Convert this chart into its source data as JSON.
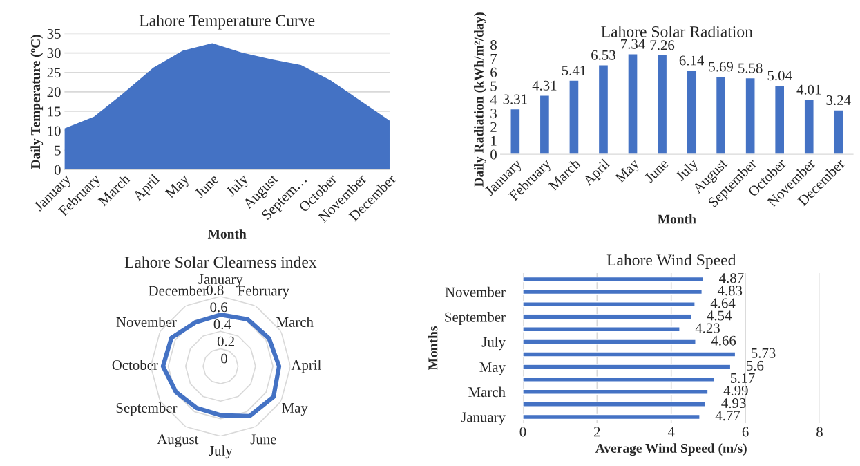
{
  "chart_data": [
    {
      "type": "area",
      "title": "Lahore Temperature Curve",
      "xlabel": "Month",
      "ylabel": "Daily Temperature (ºC)",
      "categories": [
        "January",
        "February",
        "March",
        "April",
        "May",
        "June",
        "July",
        "August",
        "Septem…",
        "October",
        "November",
        "December"
      ],
      "series": [
        {
          "color": "#4472c4",
          "values": [
            10.6,
            13.6,
            19.7,
            26.2,
            30.6,
            32.5,
            30.1,
            28.4,
            26.9,
            23.0,
            17.8,
            12.6
          ]
        }
      ],
      "ylim": [
        0,
        35
      ],
      "yticks": [
        0,
        5,
        10,
        15,
        20,
        25,
        30,
        35
      ],
      "grid": "y"
    },
    {
      "type": "bar",
      "title": "Lahore Solar Radiation",
      "xlabel": "Month",
      "ylabel": "Daily Radiation (kWh/m²/day)",
      "categories": [
        "January",
        "February",
        "March",
        "April",
        "May",
        "June",
        "July",
        "August",
        "September",
        "October",
        "November",
        "December"
      ],
      "series": [
        {
          "color": "#4472c4",
          "values": [
            3.31,
            4.31,
            5.41,
            6.53,
            7.34,
            7.26,
            6.14,
            5.69,
            5.58,
            5.04,
            4.01,
            3.24
          ]
        }
      ],
      "ylim": [
        0,
        8
      ],
      "yticks": [
        0,
        1,
        2,
        3,
        4,
        5,
        6,
        7,
        8
      ],
      "data_labels": true
    },
    {
      "type": "radar",
      "title": "Lahore Solar Clearness index",
      "categories": [
        "January",
        "February",
        "March",
        "April",
        "May",
        "June",
        "July",
        "August",
        "September",
        "October",
        "November",
        "December"
      ],
      "series": [
        {
          "color": "#4472c4",
          "values": [
            0.59,
            0.62,
            0.64,
            0.67,
            0.7,
            0.66,
            0.56,
            0.55,
            0.59,
            0.66,
            0.65,
            0.58
          ]
        }
      ],
      "ylim": [
        0,
        0.8
      ],
      "yticks": [
        0,
        0.2,
        0.4,
        0.6,
        0.8
      ],
      "grid": true
    },
    {
      "type": "bar",
      "orientation": "horizontal",
      "title": "Lahore Wind Speed",
      "xlabel": "Average Wind Speed (m/s)",
      "ylabel": "Months",
      "categories": [
        null,
        "November",
        null,
        "September",
        null,
        "July",
        null,
        "May",
        null,
        "March",
        null,
        "January"
      ],
      "series": [
        {
          "color": "#4472c4",
          "values": [
            4.87,
            4.83,
            4.64,
            4.54,
            4.23,
            4.66,
            5.73,
            5.6,
            5.17,
            4.99,
            4.93,
            4.77
          ]
        }
      ],
      "xlim": [
        0,
        8
      ],
      "xticks": [
        0,
        2,
        4,
        6,
        8
      ],
      "grid": "x",
      "data_labels": true
    }
  ]
}
